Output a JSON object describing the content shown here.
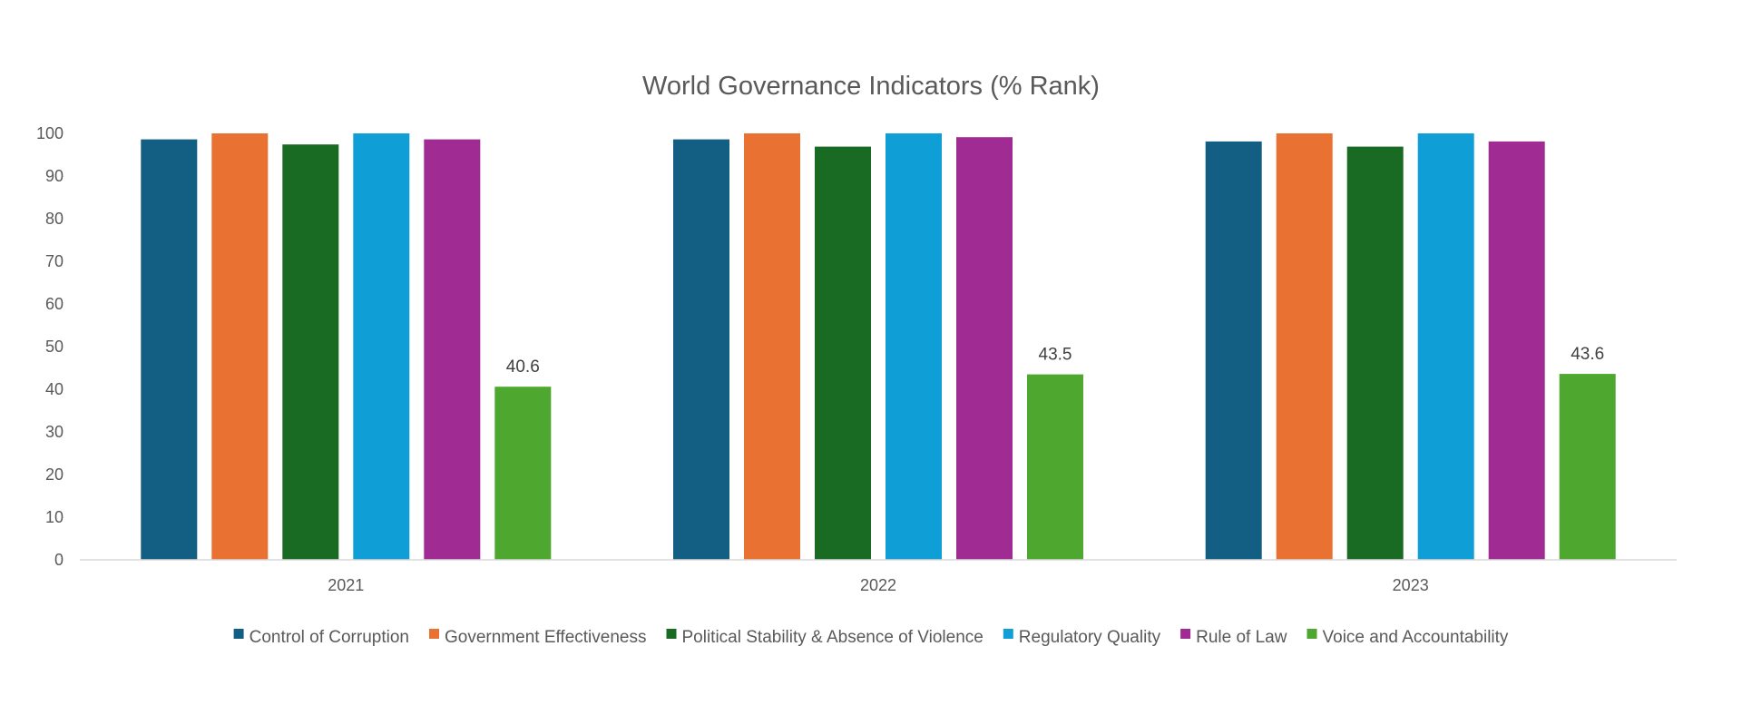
{
  "chart_data": {
    "type": "bar",
    "title": "World Governance Indicators (% Rank)",
    "xlabel": "",
    "ylabel": "",
    "ylim": [
      0,
      100
    ],
    "yticks": [
      "0",
      "10",
      "20",
      "30",
      "40",
      "50",
      "60",
      "70",
      "80",
      "90",
      "100"
    ],
    "ytick_values": [
      0,
      10,
      20,
      30,
      40,
      50,
      60,
      70,
      80,
      90,
      100
    ],
    "grid": false,
    "legend_position": "bottom",
    "categories": [
      "2021",
      "2022",
      "2023"
    ],
    "series": [
      {
        "name": "Control of Corruption",
        "color": "#135E83",
        "values": [
          98.6,
          98.6,
          98.1
        ]
      },
      {
        "name": "Government Effectiveness",
        "color": "#E97132",
        "values": [
          100,
          100,
          100
        ]
      },
      {
        "name": "Political Stability & Absence of Violence",
        "color": "#196B24",
        "values": [
          97.4,
          96.9,
          96.9
        ]
      },
      {
        "name": "Regulatory Quality",
        "color": "#0F9ED5",
        "values": [
          100,
          100,
          100
        ]
      },
      {
        "name": "Rule of Law",
        "color": "#A02B93",
        "values": [
          98.6,
          99.1,
          98.1
        ]
      },
      {
        "name": "Voice and Accountability",
        "color": "#4EA72E",
        "values": [
          40.6,
          43.5,
          43.6
        ]
      }
    ],
    "data_labels": {
      "series": "Voice and Accountability",
      "labels": [
        "40.6",
        "43.5",
        "43.6"
      ]
    }
  }
}
